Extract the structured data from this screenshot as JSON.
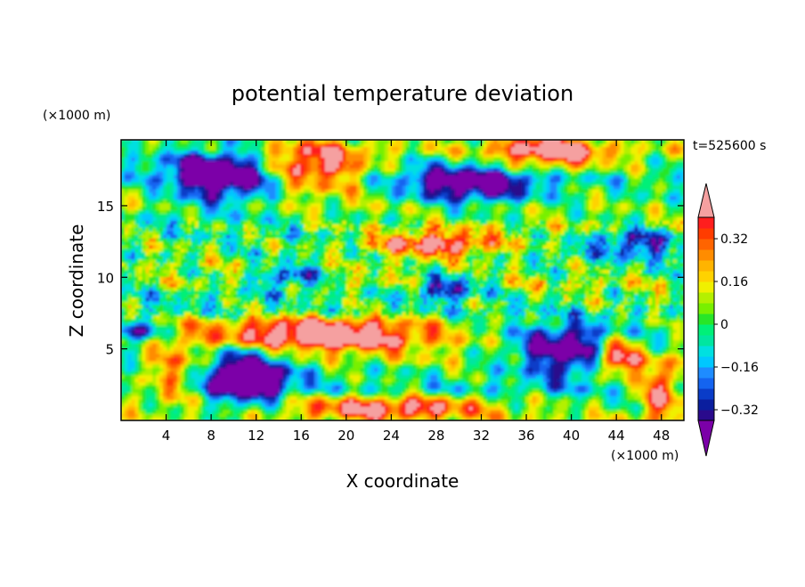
{
  "chart_data": {
    "type": "heatmap",
    "title": "potential temperature deviation",
    "time_label": "t=525600 s",
    "xlabel": "X coordinate",
    "ylabel": "Z coordinate",
    "x_unit": "(×1000 m)",
    "y_unit": "(×1000 m)",
    "xlim": [
      0,
      50
    ],
    "ylim": [
      0,
      19.6
    ],
    "x_ticks": [
      4,
      8,
      12,
      16,
      20,
      24,
      28,
      32,
      36,
      40,
      44,
      48
    ],
    "y_ticks": [
      5,
      10,
      15
    ],
    "colorbar": {
      "levels": [
        -0.4,
        -0.36,
        -0.32,
        -0.28,
        -0.24,
        -0.2,
        -0.16,
        -0.12,
        -0.08,
        -0.04,
        0,
        0.04,
        0.08,
        0.12,
        0.16,
        0.2,
        0.24,
        0.28,
        0.32,
        0.36,
        0.4
      ],
      "colors": [
        "#7b00a8",
        "#2a0a8c",
        "#0a1e9e",
        "#0a3cc8",
        "#1464f0",
        "#1e8cff",
        "#00c8ff",
        "#00e0e0",
        "#00e6a0",
        "#00f078",
        "#28e628",
        "#78f000",
        "#b4f000",
        "#f0f000",
        "#ffd200",
        "#ffb400",
        "#ff8c00",
        "#ff6400",
        "#ff3c00",
        "#ff1e1e",
        "#f5a0a0"
      ],
      "labels": [
        "0.32",
        "0.16",
        "0",
        "−0.16",
        "−0.32"
      ],
      "label_values": [
        0.32,
        0.16,
        0,
        -0.16,
        -0.32
      ]
    }
  }
}
